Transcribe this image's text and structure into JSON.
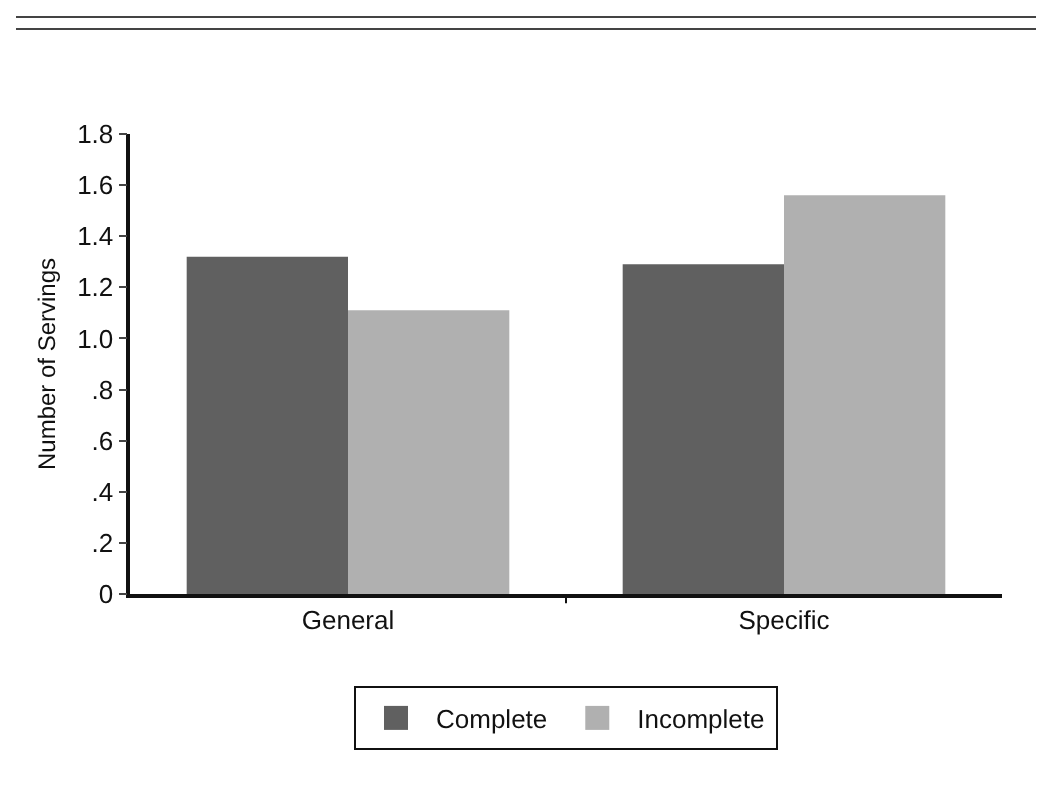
{
  "chart_data": {
    "type": "bar",
    "ylabel": "Number of Servings",
    "categories": [
      "General",
      "Specific"
    ],
    "series": [
      {
        "name": "Complete",
        "color": "#606060",
        "values": [
          1.32,
          1.29
        ]
      },
      {
        "name": "Incomplete",
        "color": "#b0b0b0",
        "values": [
          1.11,
          1.56
        ]
      }
    ],
    "ylim": [
      0,
      1.8
    ],
    "yticks": [
      0,
      {
        "value": 0.2,
        "label": ".2"
      },
      {
        "value": 0.4,
        "label": ".4"
      },
      {
        "value": 0.6,
        "label": ".6"
      },
      {
        "value": 0.8,
        "label": ".8"
      },
      {
        "value": 1,
        "label": "1.0"
      },
      1.2,
      1.4,
      1.6,
      1.8
    ],
    "grid": false,
    "legend": "bottom"
  }
}
